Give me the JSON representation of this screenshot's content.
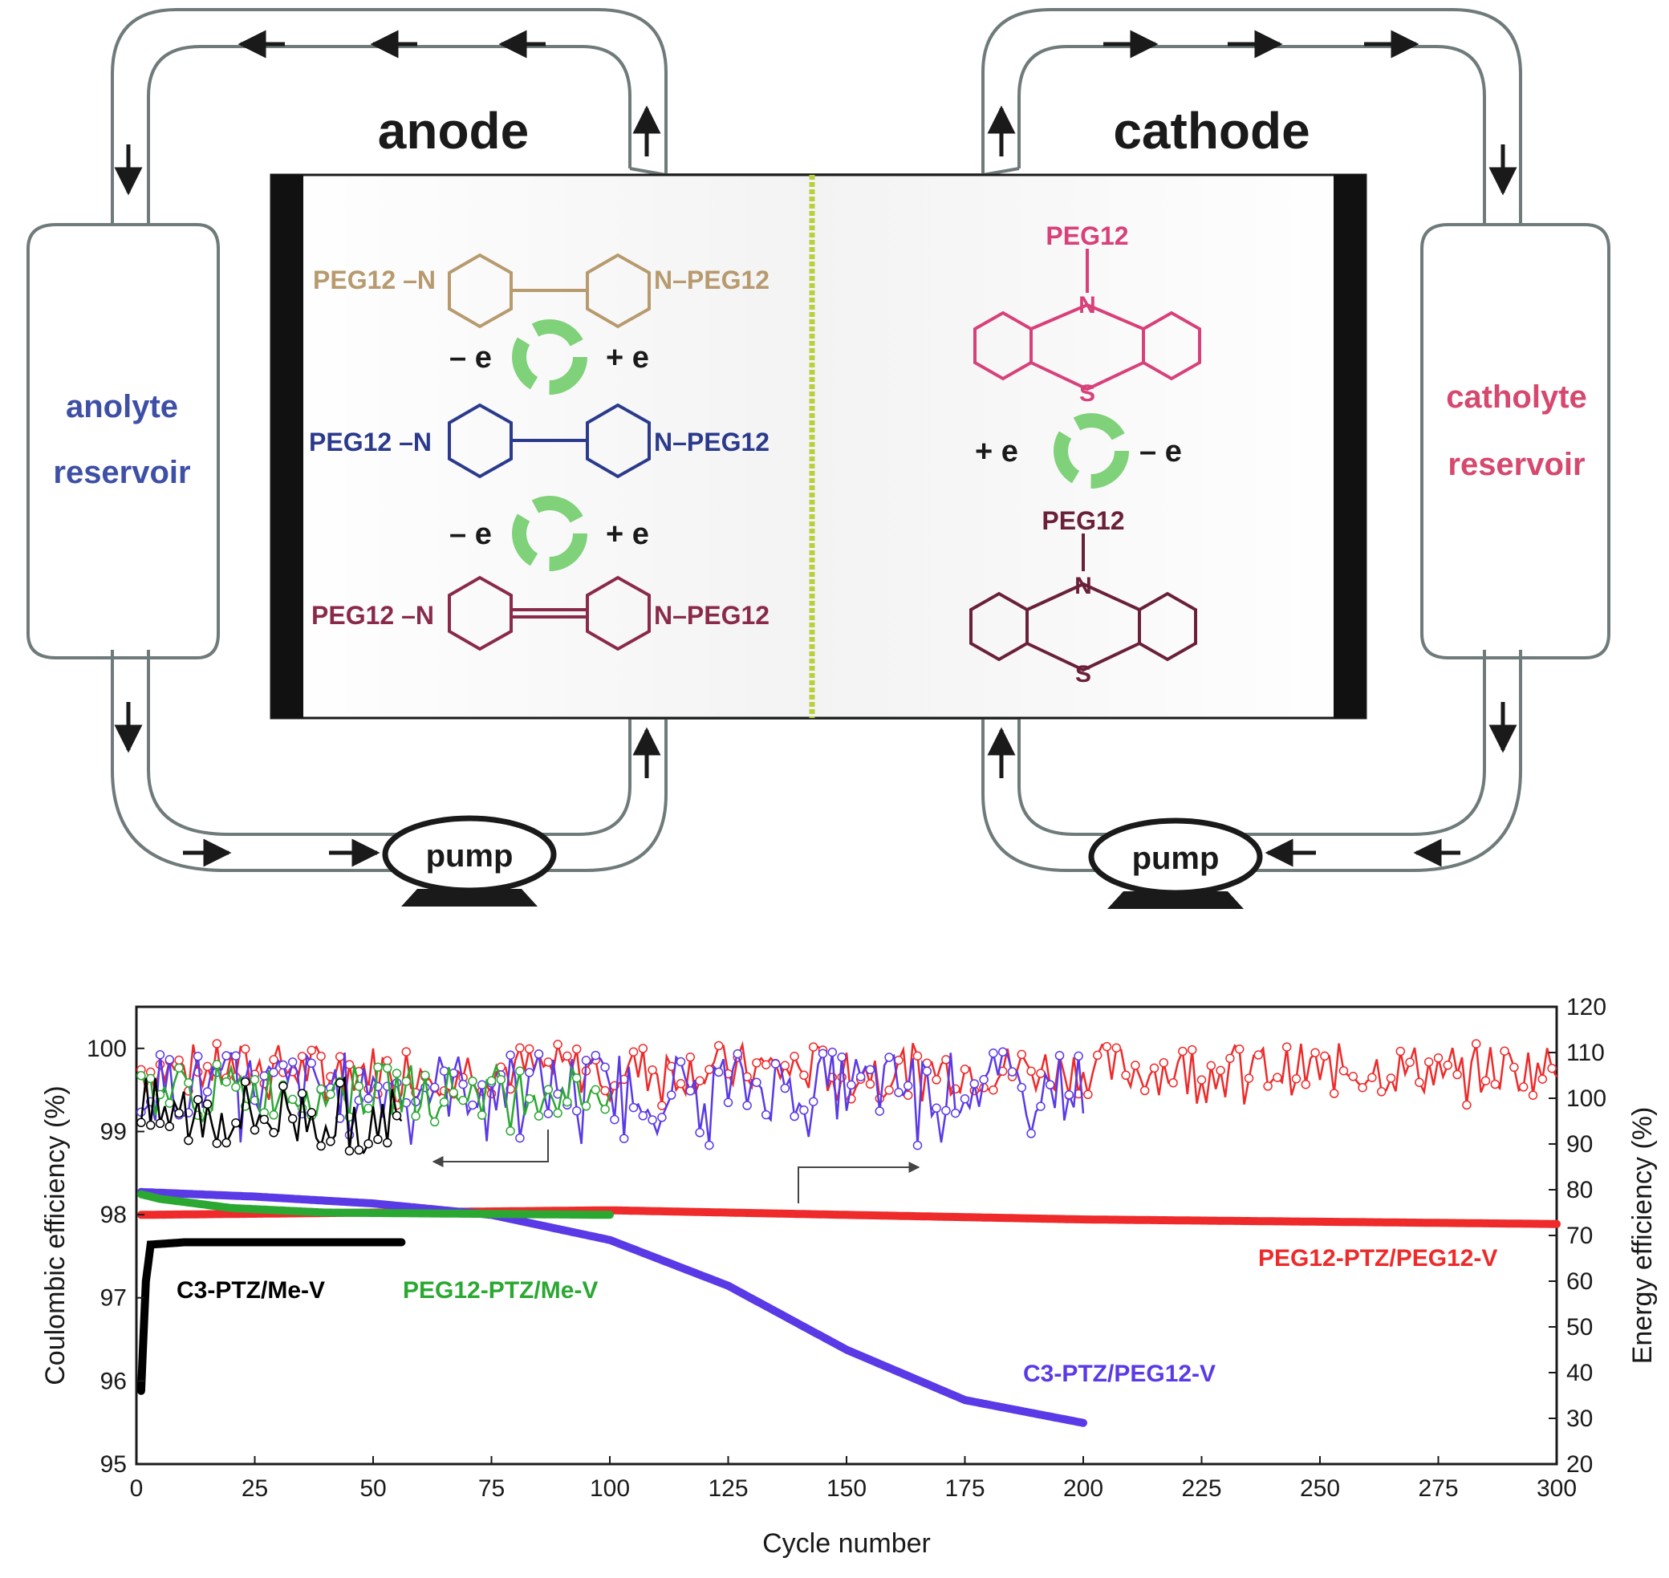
{
  "colors": {
    "pipe": "#6f7a7a",
    "ink": "#1a1a1a",
    "anolyte_text": "#3e4fa6",
    "catholyte_text": "#d6486e",
    "viologen_dication": "#b79a6e",
    "viologen_radical": "#2b3a8c",
    "viologen_neutral": "#8a2a4a",
    "ptz_cation": "#d8407a",
    "ptz_neutral": "#6a2038",
    "cycle_arrow": "#7fd17a",
    "membrane": "#b9cf3c",
    "series_black": "#000000",
    "series_green": "#2aa832",
    "series_red": "#ee2a2a",
    "series_blue": "#5a3ae6"
  },
  "diagram": {
    "anode_label": "anode",
    "cathode_label": "cathode",
    "anolyte_line1": "anolyte",
    "anolyte_line2": "reservoir",
    "catholyte_line1": "catholyte",
    "catholyte_line2": "reservoir",
    "pump_left": "pump",
    "pump_right": "pump",
    "peg": "PEG12",
    "peg_left_n": "PEG12 –N",
    "n_peg_right": "N–PEG12",
    "n_atom": "N",
    "s_atom": "S",
    "minus_e": "– e",
    "plus_e": "+ e",
    "e_superscript": "-"
  },
  "chart_data": {
    "type": "line",
    "title": "",
    "xlabel": "Cycle number",
    "ylabel_left": "Coulombic efficiency (%)",
    "ylabel_right": "Energy efficiency (%)",
    "xlim": [
      0,
      300
    ],
    "ylim_left": [
      95,
      100.5
    ],
    "ylim_right": [
      20,
      120
    ],
    "x_ticks": [
      "0",
      "25",
      "50",
      "75",
      "100",
      "125",
      "150",
      "175",
      "200",
      "225",
      "250",
      "275",
      "300"
    ],
    "y_left_ticks": [
      "95",
      "96",
      "97",
      "98",
      "99",
      "100"
    ],
    "y_right_ticks": [
      "20",
      "30",
      "40",
      "50",
      "60",
      "70",
      "80",
      "90",
      "100",
      "110",
      "120"
    ],
    "arrow_left_hint": "left axis (Coulombic efficiency)",
    "arrow_right_hint": "right axis (Energy efficiency)",
    "series": [
      {
        "name": "C3-PTZ/Me-V",
        "color": "#000000",
        "coulombic_efficiency": {
          "cycles": [
            1,
            56
          ],
          "value": 99.2,
          "range": [
            98.6,
            99.9
          ]
        },
        "energy_efficiency": {
          "cycles": [
            1,
            2,
            3,
            10,
            30,
            56
          ],
          "values": [
            36,
            60,
            68,
            68.5,
            68.5,
            68.5
          ]
        }
      },
      {
        "name": "PEG12-PTZ/Me-V",
        "color": "#2aa832",
        "coulombic_efficiency": {
          "cycles": [
            1,
            100
          ],
          "value": 99.5,
          "range": [
            99.0,
            99.9
          ]
        },
        "energy_efficiency": {
          "cycles": [
            1,
            5,
            20,
            40,
            100
          ],
          "values": [
            79,
            78,
            76,
            75,
            74.5
          ]
        }
      },
      {
        "name": "PEG12-PTZ/PEG12-V",
        "color": "#ee2a2a",
        "coulombic_efficiency": {
          "cycles": [
            1,
            300
          ],
          "value": 99.75,
          "range": [
            99.3,
            100.2
          ]
        },
        "energy_efficiency": {
          "cycles": [
            1,
            50,
            100,
            150,
            200,
            250,
            300
          ],
          "values": [
            74.5,
            75,
            75.5,
            74.5,
            73.5,
            73,
            72.5
          ]
        }
      },
      {
        "name": "C3-PTZ/PEG12-V",
        "color": "#5a3ae6",
        "coulombic_efficiency": {
          "cycles": [
            1,
            200
          ],
          "value": 99.55,
          "range": [
            98.8,
            100.0
          ]
        },
        "energy_efficiency": {
          "cycles": [
            1,
            25,
            50,
            75,
            100,
            125,
            150,
            175,
            200
          ],
          "values": [
            79.5,
            78.5,
            77,
            74.5,
            69,
            59,
            45,
            34,
            29
          ]
        }
      }
    ]
  }
}
